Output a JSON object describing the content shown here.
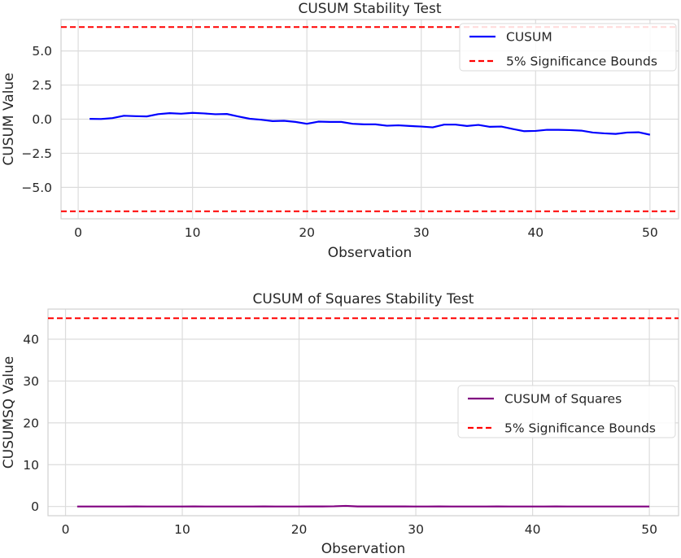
{
  "chart_data": [
    {
      "type": "line",
      "title": "CUSUM Stability Test",
      "xlabel": "Observation",
      "ylabel": "CUSUM Value",
      "xlim": [
        -1.5,
        52.5
      ],
      "ylim": [
        -7.3,
        7.3
      ],
      "xticks": [
        0,
        10,
        20,
        30,
        40,
        50
      ],
      "yticks": [
        -5.0,
        -2.5,
        0.0,
        2.5,
        5.0
      ],
      "ytick_labels": [
        "−5.0",
        "−2.5",
        "0.0",
        "2.5",
        "5.0"
      ],
      "grid": true,
      "legend_position": "top-right",
      "series": [
        {
          "name": "CUSUM",
          "color": "#0000ff",
          "style": "solid",
          "x": [
            1,
            2,
            3,
            4,
            5,
            6,
            7,
            8,
            9,
            10,
            11,
            12,
            13,
            14,
            15,
            16,
            17,
            18,
            19,
            20,
            21,
            22,
            23,
            24,
            25,
            26,
            27,
            28,
            29,
            30,
            31,
            32,
            33,
            34,
            35,
            36,
            37,
            38,
            39,
            40,
            41,
            42,
            43,
            44,
            45,
            46,
            47,
            48,
            49,
            50
          ],
          "y": [
            0.02,
            0.01,
            0.08,
            0.25,
            0.22,
            0.2,
            0.37,
            0.44,
            0.4,
            0.46,
            0.42,
            0.36,
            0.38,
            0.2,
            0.03,
            -0.04,
            -0.14,
            -0.12,
            -0.2,
            -0.34,
            -0.18,
            -0.2,
            -0.2,
            -0.34,
            -0.38,
            -0.38,
            -0.48,
            -0.45,
            -0.5,
            -0.54,
            -0.6,
            -0.4,
            -0.4,
            -0.5,
            -0.42,
            -0.56,
            -0.54,
            -0.72,
            -0.88,
            -0.86,
            -0.78,
            -0.78,
            -0.8,
            -0.84,
            -0.98,
            -1.04,
            -1.08,
            -0.98,
            -0.96,
            -1.14
          ]
        },
        {
          "name": "5% Significance Bounds",
          "color": "#ff0000",
          "style": "dashed",
          "bounds": [
            6.75,
            -6.75
          ]
        }
      ]
    },
    {
      "type": "line",
      "title": "CUSUM of Squares Stability Test",
      "xlabel": "Observation",
      "ylabel": "CUSUMSQ Value",
      "xlim": [
        -1.5,
        52.5
      ],
      "ylim": [
        -2.2,
        47.2
      ],
      "xticks": [
        0,
        10,
        20,
        30,
        40,
        50
      ],
      "yticks": [
        0,
        10,
        20,
        30,
        40
      ],
      "grid": true,
      "legend_position": "center-right",
      "series": [
        {
          "name": "CUSUM of Squares",
          "color": "#800080",
          "style": "solid",
          "x": [
            1,
            2,
            3,
            4,
            5,
            6,
            7,
            8,
            9,
            10,
            11,
            12,
            13,
            14,
            15,
            16,
            17,
            18,
            19,
            20,
            21,
            22,
            23,
            24,
            25,
            26,
            27,
            28,
            29,
            30,
            31,
            32,
            33,
            34,
            35,
            36,
            37,
            38,
            39,
            40,
            41,
            42,
            43,
            44,
            45,
            46,
            47,
            48,
            49,
            50
          ],
          "y": [
            0,
            0,
            0,
            0,
            0,
            0.02,
            0,
            0,
            0,
            0,
            0.02,
            0,
            0,
            0,
            0,
            0,
            0.02,
            0,
            0,
            0,
            0.02,
            0.02,
            0.05,
            0.15,
            0.02,
            0.02,
            0.02,
            0.02,
            0.02,
            0,
            0,
            0.02,
            0,
            0,
            0,
            0,
            0.02,
            0,
            0,
            0,
            0,
            0.02,
            0,
            0,
            0,
            0,
            0,
            0,
            0,
            0
          ]
        },
        {
          "name": "5% Significance Bounds",
          "color": "#ff0000",
          "style": "dashed",
          "bounds": [
            45
          ]
        }
      ]
    }
  ]
}
